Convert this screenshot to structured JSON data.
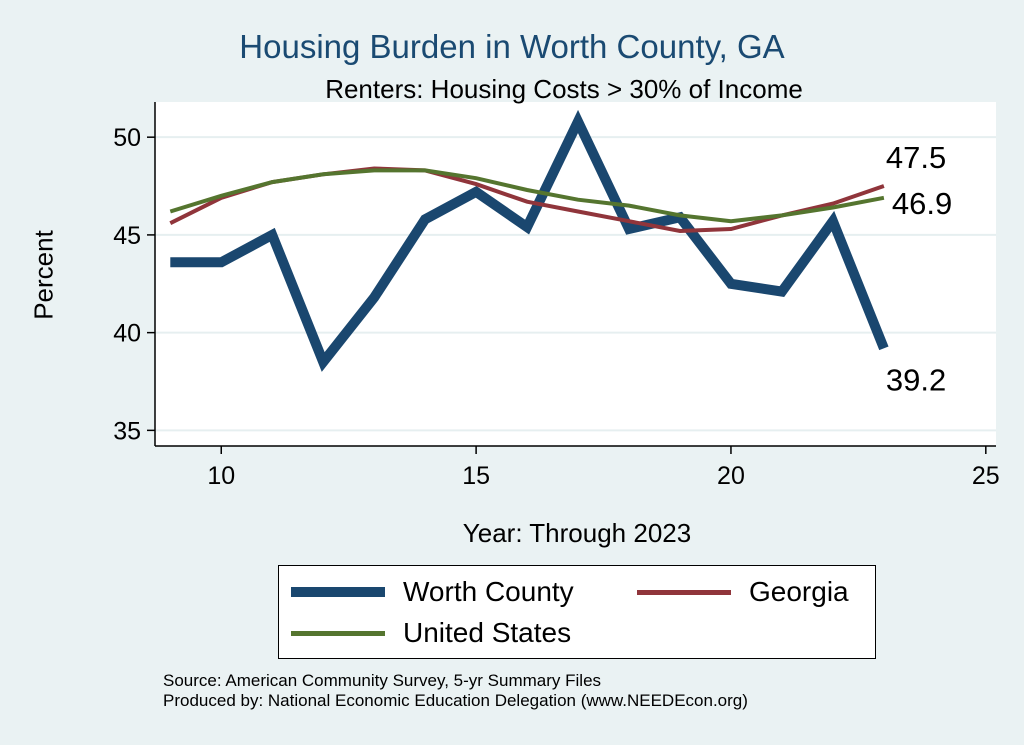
{
  "chart_data": {
    "type": "line",
    "title": "Housing Burden in Worth County, GA",
    "subtitle": "Renters: Housing Costs > 30% of Income",
    "xlabel": "Year: Through 2023",
    "ylabel": "Percent",
    "xlim": [
      8.7,
      25.2
    ],
    "ylim": [
      34.2,
      51.8
    ],
    "xticks": [
      10,
      15,
      20,
      25
    ],
    "yticks": [
      35,
      40,
      45,
      50
    ],
    "grid": true,
    "x": [
      9,
      10,
      11,
      12,
      13,
      14,
      15,
      16,
      17,
      18,
      19,
      20,
      21,
      22,
      23
    ],
    "series": [
      {
        "name": "Worth County",
        "color": "#1a476f",
        "end_label": "39.2",
        "values": [
          43.6,
          43.6,
          45.0,
          38.5,
          41.8,
          45.8,
          47.2,
          45.4,
          50.8,
          45.3,
          45.9,
          42.5,
          42.1,
          45.7,
          39.2
        ]
      },
      {
        "name": "Georgia",
        "color": "#90353b",
        "end_label": "47.5",
        "values": [
          45.6,
          46.9,
          47.7,
          48.1,
          48.4,
          48.3,
          47.6,
          46.7,
          46.2,
          45.7,
          45.2,
          45.3,
          46.0,
          46.6,
          47.5
        ]
      },
      {
        "name": "United States",
        "color": "#55752f",
        "end_label": "46.9",
        "values": [
          46.2,
          47.0,
          47.7,
          48.1,
          48.3,
          48.3,
          47.9,
          47.3,
          46.8,
          46.5,
          46.0,
          45.7,
          46.0,
          46.4,
          46.9
        ]
      }
    ]
  },
  "source": {
    "line1": "Source: American Community Survey, 5-yr Summary Files",
    "line2": "Produced by: National Economic Education Delegation (www.NEEDEcon.org)"
  }
}
